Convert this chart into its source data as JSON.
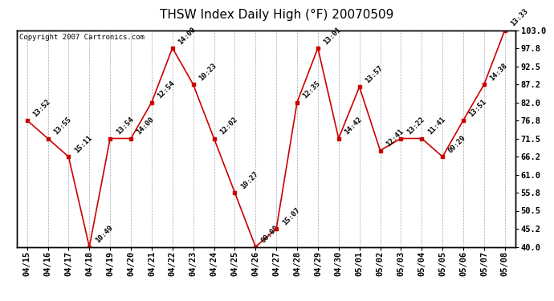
{
  "title": "THSW Index Daily High (°F) 20070509",
  "copyright": "Copyright 2007 Cartronics.com",
  "dates": [
    "04/15",
    "04/16",
    "04/17",
    "04/18",
    "04/19",
    "04/20",
    "04/21",
    "04/22",
    "04/23",
    "04/24",
    "04/25",
    "04/26",
    "04/27",
    "04/28",
    "04/29",
    "04/30",
    "05/01",
    "05/02",
    "05/03",
    "05/04",
    "05/05",
    "05/06",
    "05/07",
    "05/08"
  ],
  "values": [
    76.8,
    71.5,
    66.2,
    40.0,
    71.5,
    71.5,
    82.0,
    97.8,
    87.2,
    71.5,
    55.8,
    40.0,
    45.2,
    82.0,
    97.8,
    71.5,
    86.5,
    68.0,
    71.5,
    71.5,
    66.2,
    76.8,
    87.2,
    103.0
  ],
  "time_labels": [
    "13:52",
    "13:55",
    "15:11",
    "10:49",
    "13:54",
    "14:00",
    "12:54",
    "14:00",
    "10:23",
    "12:02",
    "10:27",
    "00:00",
    "15:07",
    "12:35",
    "13:01",
    "14:42",
    "13:57",
    "12:41",
    "13:22",
    "11:41",
    "09:29",
    "13:51",
    "14:38",
    "13:33"
  ],
  "ylim": [
    40.0,
    103.0
  ],
  "yticks": [
    40.0,
    45.2,
    50.5,
    55.8,
    61.0,
    66.2,
    71.5,
    76.8,
    82.0,
    87.2,
    92.5,
    97.8,
    103.0
  ],
  "line_color": "#cc0000",
  "marker_color": "#cc0000",
  "bg_color": "#ffffff",
  "grid_color": "#aaaaaa",
  "title_fontsize": 11,
  "label_fontsize": 6.5,
  "tick_fontsize": 7.5,
  "copyright_fontsize": 6.5
}
